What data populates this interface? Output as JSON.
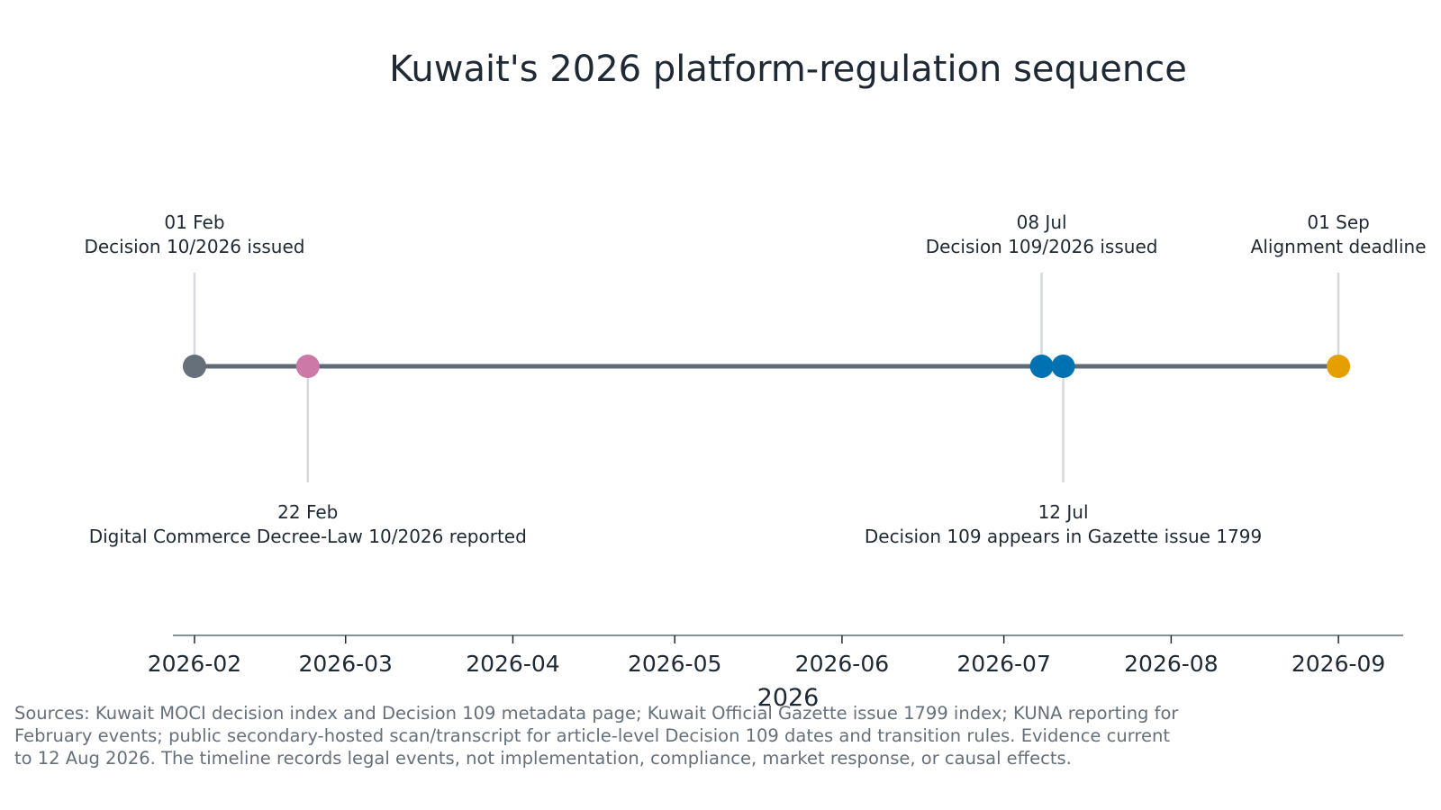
{
  "chart_data": {
    "type": "timeline",
    "title": "Kuwait's 2026 platform-regulation sequence",
    "xlabel": "2026",
    "x_range": [
      "2026-01-28",
      "2026-09-13"
    ],
    "ticks": [
      "2026-02",
      "2026-03",
      "2026-04",
      "2026-05",
      "2026-06",
      "2026-07",
      "2026-08",
      "2026-09"
    ],
    "grid": false,
    "line_color": "#5f6b77",
    "events": [
      {
        "date": "2026-02-01",
        "date_label": "01 Feb",
        "label": "Decision 10/2026 issued",
        "side": "above",
        "color": "#66707a"
      },
      {
        "date": "2026-02-22",
        "date_label": "22 Feb",
        "label": "Digital Commerce Decree-Law 10/2026 reported",
        "side": "below",
        "color": "#cc79a7"
      },
      {
        "date": "2026-07-08",
        "date_label": "08 Jul",
        "label": "Decision 109/2026 issued",
        "side": "above",
        "color": "#0072b2"
      },
      {
        "date": "2026-07-12",
        "date_label": "12 Jul",
        "label": "Decision 109 appears in Gazette issue 1799",
        "side": "below",
        "color": "#0072b2"
      },
      {
        "date": "2026-09-01",
        "date_label": "01 Sep",
        "label": "Alignment deadline",
        "side": "above",
        "color": "#e69f00"
      }
    ]
  },
  "footer": {
    "sources": "Sources: Kuwait MOCI decision index and Decision 109 metadata page; Kuwait Official Gazette issue 1799 index; KUNA reporting for February events; public secondary-hosted scan/transcript for article-level Decision 109 dates and transition rules. Evidence current to 12 Aug 2026. The timeline records legal events, not implementation, compliance, market response, or causal effects."
  }
}
